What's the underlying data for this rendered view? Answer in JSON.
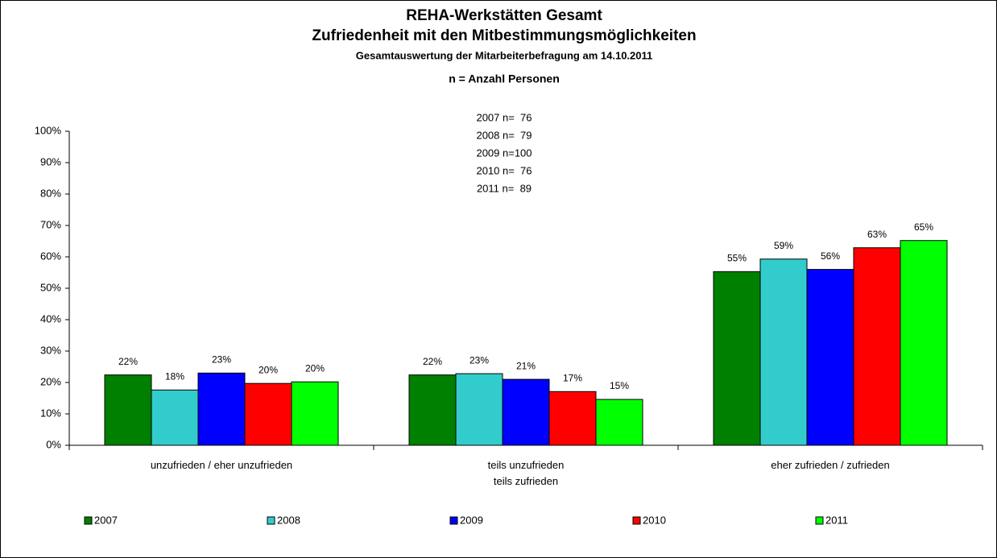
{
  "chart_data": {
    "type": "bar",
    "title": [
      "REHA-Werkstätten Gesamt",
      "Zufriedenheit mit den Mitbestimmungsmöglichkeiten"
    ],
    "subtitle": "Gesamtauswertung der Mitarbeiterbefragung am 14.10.2011",
    "annotation": {
      "title": "n = Anzahl Personen",
      "lines": [
        "2007 n=  76",
        "2008 n=  79",
        "2009 n=100",
        "2010 n=  76",
        "2011 n=  89"
      ]
    },
    "categories": [
      "unzufrieden / eher unzufrieden",
      "teils unzufrieden\nteils zufrieden",
      "eher zufrieden / zufrieden"
    ],
    "series": [
      {
        "name": "2007",
        "color": "#008000",
        "values": [
          22.4,
          22.4,
          55.3
        ],
        "value_labels": [
          "22%",
          "22%",
          "55%"
        ]
      },
      {
        "name": "2008",
        "color": "#33cccc",
        "values": [
          17.6,
          22.8,
          59.3
        ],
        "value_labels": [
          "18%",
          "23%",
          "59%"
        ]
      },
      {
        "name": "2009",
        "color": "#0000ff",
        "values": [
          23.0,
          21.0,
          56.0
        ],
        "value_labels": [
          "23%",
          "21%",
          "56%"
        ]
      },
      {
        "name": "2010",
        "color": "#ff0000",
        "values": [
          19.7,
          17.1,
          62.9
        ],
        "value_labels": [
          "20%",
          "17%",
          "63%"
        ]
      },
      {
        "name": "2011",
        "color": "#00ff00",
        "values": [
          20.2,
          14.6,
          65.2
        ],
        "value_labels": [
          "20%",
          "15%",
          "65%"
        ]
      }
    ],
    "ylim": [
      0,
      100
    ],
    "yticks": [
      {
        "value": 0,
        "label": "0%"
      },
      {
        "value": 10,
        "label": "10%"
      },
      {
        "value": 20,
        "label": "20%"
      },
      {
        "value": 30,
        "label": "30%"
      },
      {
        "value": 40,
        "label": "40%"
      },
      {
        "value": 50,
        "label": "50%"
      },
      {
        "value": 60,
        "label": "60%"
      },
      {
        "value": 70,
        "label": "70%"
      },
      {
        "value": 80,
        "label": "80%"
      },
      {
        "value": 90,
        "label": "90%"
      },
      {
        "value": 100,
        "label": "100%"
      }
    ],
    "grid": false,
    "legend": "bottom"
  }
}
